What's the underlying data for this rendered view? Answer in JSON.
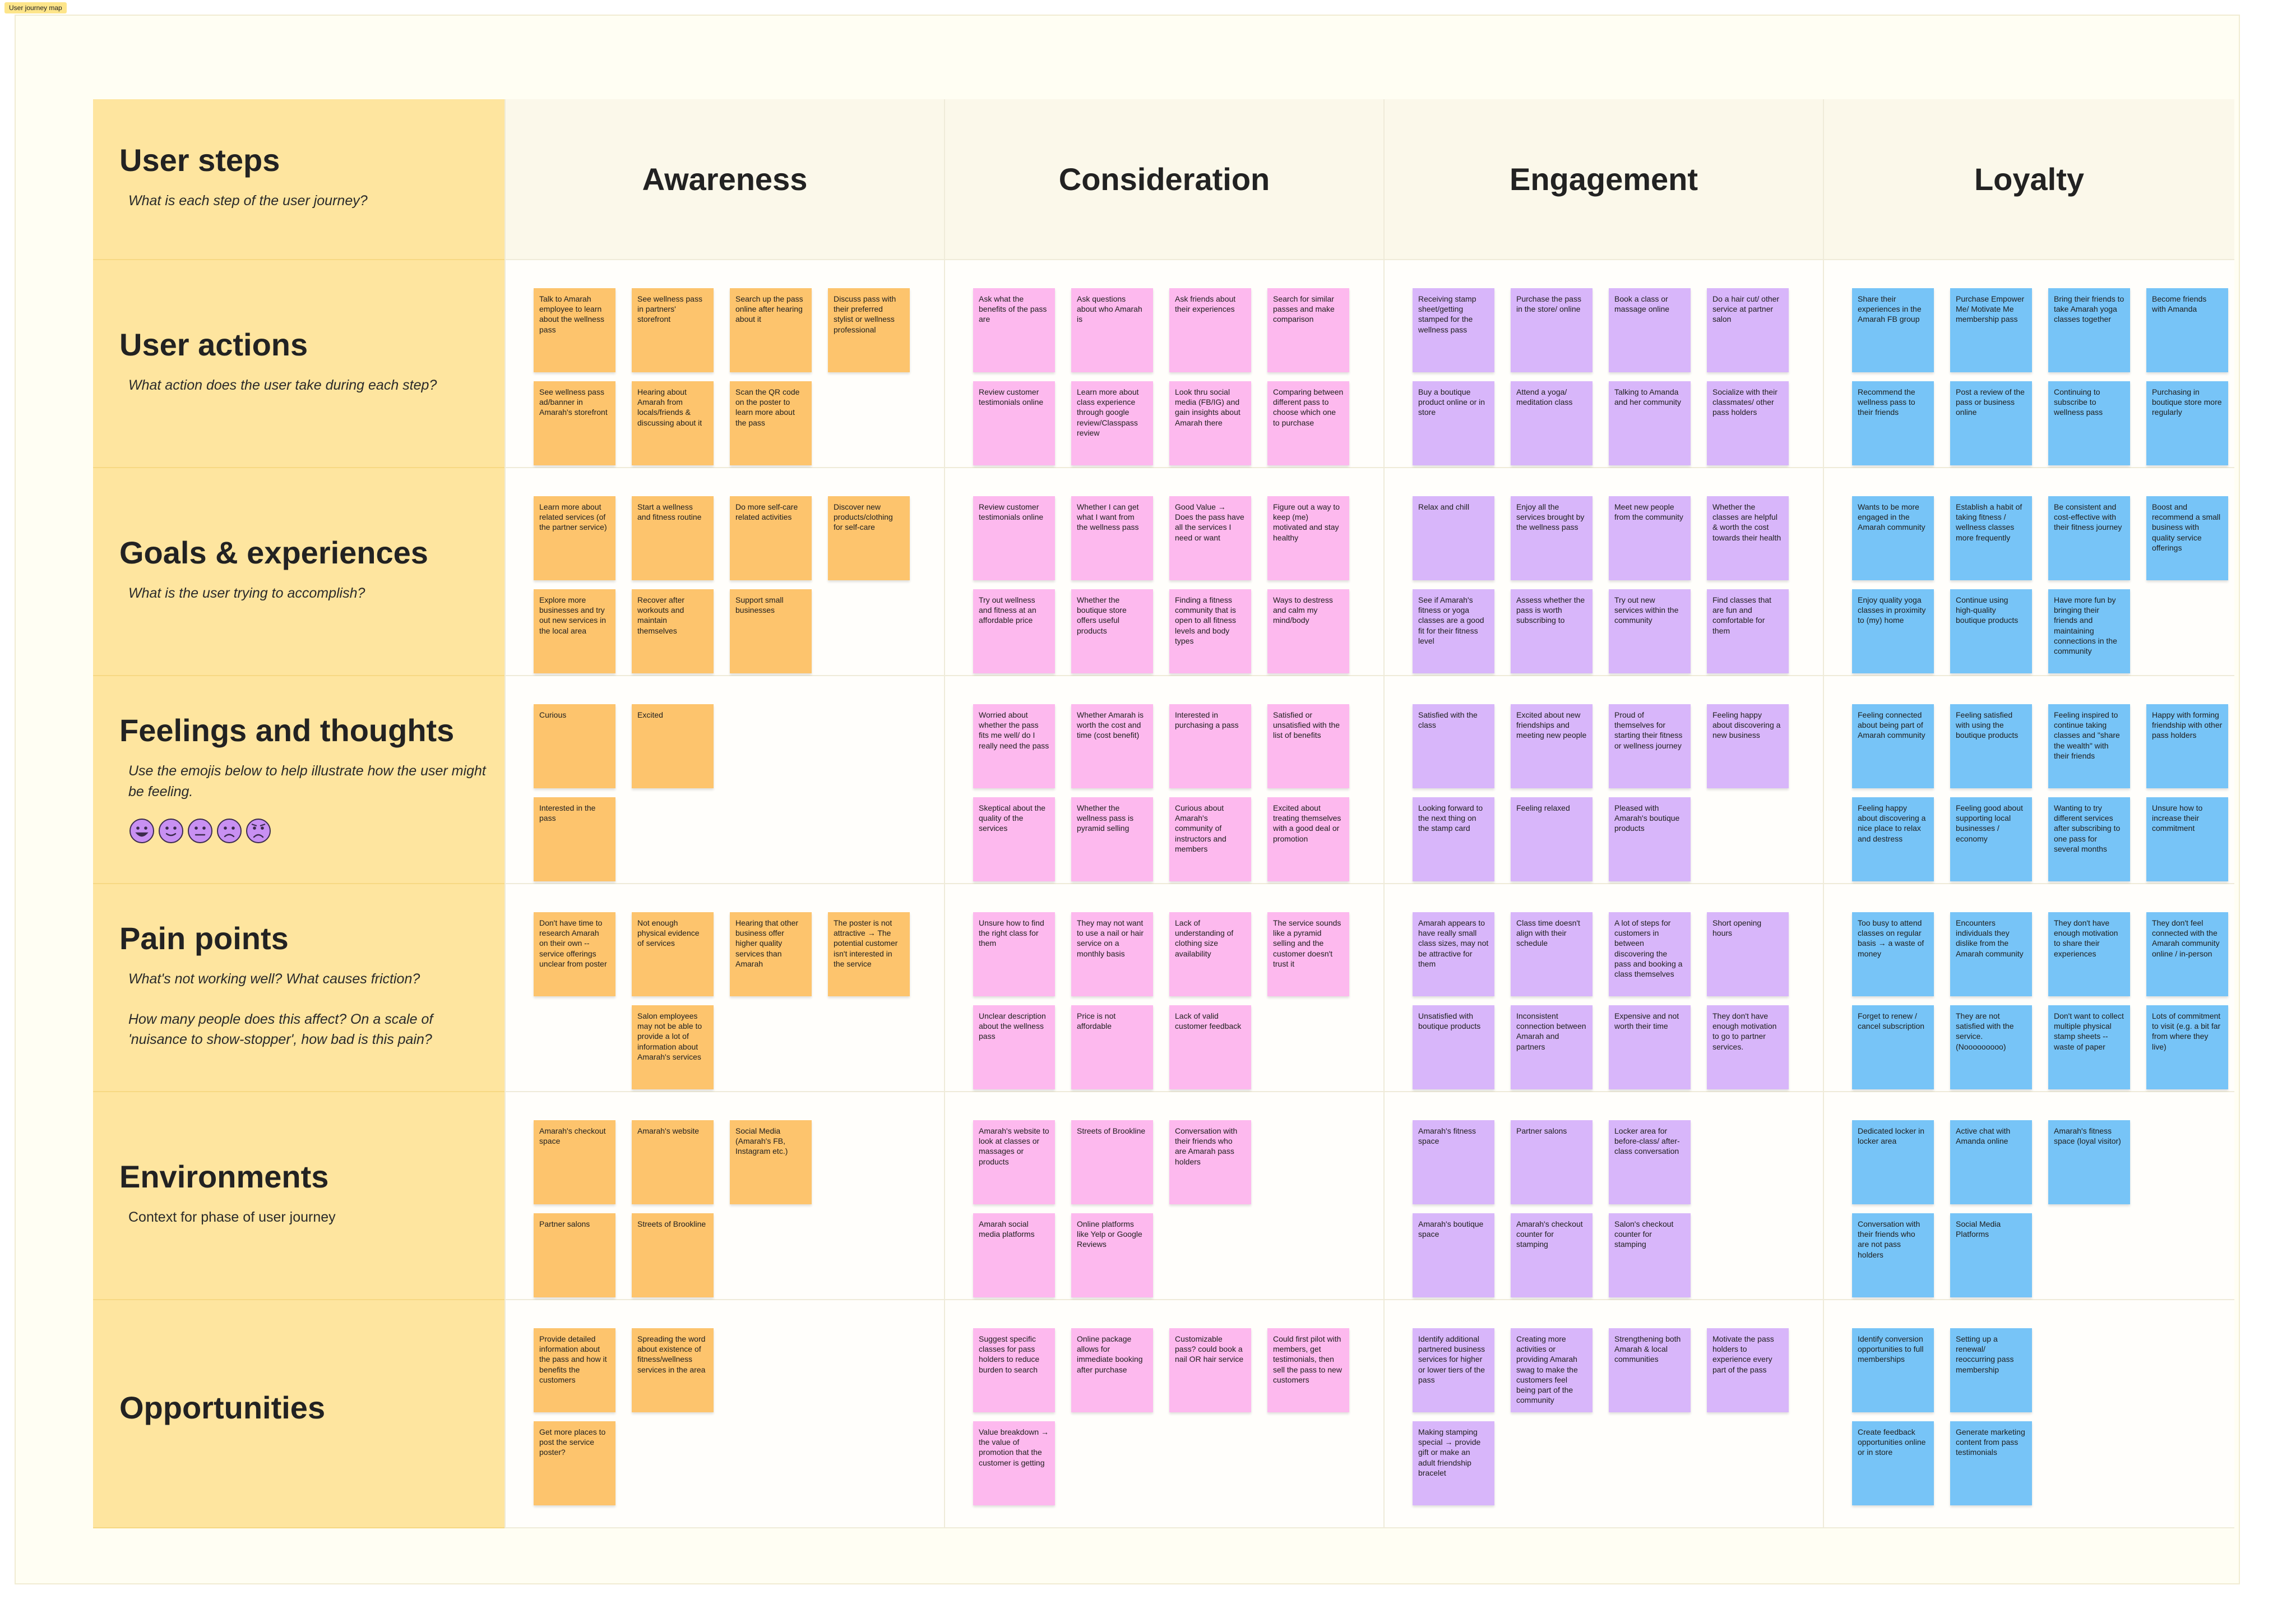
{
  "tag": "User journey map",
  "columns": [
    "Awareness",
    "Consideration",
    "Engagement",
    "Loyalty"
  ],
  "rows": [
    {
      "label": "User steps",
      "subtitle": [
        "What is each step of the user journey?"
      ]
    },
    {
      "label": "User actions",
      "subtitle": [
        "What action does the user take during each step?"
      ],
      "cells": [
        [
          "Talk to Amarah employee to learn about the wellness pass",
          "See wellness pass in partners' storefront",
          "Search up the pass online after hearing about it",
          "Discuss pass with their preferred stylist or wellness professional",
          "See wellness pass ad/banner in Amarah's storefront",
          "Hearing about Amarah from locals/friends & discussing about it",
          "Scan the QR code on the poster to learn more about the pass"
        ],
        [
          "Ask what the benefits of the pass are",
          "Ask questions about who Amarah is",
          "Ask friends about their experiences",
          "Search for similar passes and make comparison",
          "Review customer testimonials online",
          "Learn more about class experience through google review/Classpass review",
          "Look thru social media (FB/IG) and gain insights about Amarah there",
          "Comparing between different pass to choose which one to purchase"
        ],
        [
          "Receiving stamp sheet/getting stamped for the wellness pass",
          "Purchase the pass in the store/ online",
          "Book a class or massage online",
          "Do a hair cut/ other service at partner salon",
          "Buy a boutique product online or in store",
          "Attend a yoga/ meditation class",
          "Talking to Amanda and her community",
          "Socialize with their classmates/ other pass holders"
        ],
        [
          "Share their experiences in the Amarah FB group",
          "Purchase Empower Me/ Motivate Me membership pass",
          "Bring their friends to take Amarah yoga classes together",
          "Become friends with Amanda",
          "Recommend the wellness pass to their friends",
          "Post a review of the pass or business online",
          "Continuing to subscribe to wellness pass",
          "Purchasing in boutique store more regularly"
        ]
      ]
    },
    {
      "label": "Goals & experiences",
      "subtitle": [
        "What is the user trying to accomplish?"
      ],
      "cells": [
        [
          "Learn more about related services (of the partner service)",
          "Start a wellness and fitness routine",
          "Do more self-care related activities",
          "Discover new products/clothing for self-care",
          "Explore more businesses and try out new services in the local area",
          "Recover after workouts and maintain themselves",
          "Support small businesses"
        ],
        [
          "Review customer testimonials online",
          "Whether I can get what I want from the wellness pass",
          "Good Value → Does the pass have all the services I need or want",
          "Figure out a way to keep (me) motivated and stay healthy",
          "Try out wellness and fitness at an affordable price",
          "Whether the boutique store offers useful products",
          "Finding a fitness community that is open to all fitness levels and body types",
          "Ways to destress and calm my mind/body"
        ],
        [
          "Relax and chill",
          "Enjoy all the services brought by the wellness pass",
          "Meet new people from the community",
          "Whether the classes are helpful & worth the cost towards their health",
          "See if Amarah's fitness or yoga classes are a good fit for their fitness level",
          "Assess whether the pass is worth subscribing to",
          "Try out new services within the community",
          "Find classes that are fun and comfortable for them"
        ],
        [
          "Wants to be more engaged in the Amarah community",
          "Establish a habit of taking fitness / wellness classes more frequently",
          "Be consistent and cost-effective with their fitness journey",
          "Boost and recommend a small business with quality service offerings",
          "Enjoy quality yoga classes in proximity to (my) home",
          "Continue using high-quality boutique products",
          "Have more fun by bringing their friends and maintaining connections in the community"
        ]
      ]
    },
    {
      "label": "Feelings and thoughts",
      "subtitle": [
        "Use the emojis below to help illustrate how the user might be feeling."
      ],
      "cells": [
        [
          "Curious",
          "Excited",
          "Interested in the pass"
        ],
        [
          "Worried about whether the pass fits me well/ do I really need the pass",
          "Whether Amarah is worth the cost and time (cost benefit)",
          "Interested in purchasing a pass",
          "Satisfied or unsatisfied with the list of benefits",
          "Skeptical about the quality of the services",
          "Whether the wellness pass is pyramid selling",
          "Curious about Amarah's community of instructors and members",
          "Excited about treating themselves with a good deal or promotion"
        ],
        [
          "Satisfied with the class",
          "Excited about new friendships and meeting new people",
          "Proud of themselves for starting their fitness or wellness journey",
          "Feeling happy about discovering a new business",
          "Looking forward to the next thing on the stamp card",
          "Feeling relaxed",
          "Pleased with Amarah's boutique products"
        ],
        [
          "Feeling connected about being part of Amarah community",
          "Feeling satisfied with using the boutique products",
          "Feeling inspired to continue taking classes and \"share the wealth\" with their friends",
          "Happy with forming friendship with other pass holders",
          "Feeling happy about discovering a nice place to relax and destress",
          "Feeling good about supporting local businesses / economy",
          "Wanting to try different services after subscribing to one pass for several months",
          "Unsure how to increase their commitment"
        ]
      ]
    },
    {
      "label": "Pain points",
      "subtitle": [
        "What's not working well? What causes friction?",
        "How many people does this affect? On a scale of 'nuisance to show-stopper', how bad is this pain?"
      ],
      "cells": [
        [
          "Don't have time to research Amarah on their own -- service offerings unclear from poster",
          "Not enough physical evidence of services",
          "Hearing that other business offer higher quality services than Amarah",
          "The poster is not attractive → The potential customer isn't interested in the service",
          "Salon employees may not be able to provide a lot of information about Amarah's services"
        ],
        [
          "Unsure how to find the right class for them",
          "They may not want to use a nail or hair service on a monthly basis",
          "Lack of understanding of clothing size availability",
          "The service sounds like a pyramid selling and the customer doesn't trust it",
          "Unclear description about the wellness pass",
          "Price is not affordable",
          "Lack of valid customer feedback"
        ],
        [
          "Amarah appears to have really small class sizes, may not be attractive for them",
          "Class time doesn't align with their schedule",
          "A lot of steps for customers in between discovering the pass and booking a class themselves",
          "Short opening hours",
          "Unsatisfied with boutique products",
          "Inconsistent connection between Amarah and partners",
          "Expensive and not worth their time",
          "They don't have enough motivation to go to partner services."
        ],
        [
          "Too busy to attend classes on regular basis → a waste of money",
          "Encounters individuals they dislike from the Amarah community",
          "They don't have enough motivation to share their experiences",
          "They don't feel connected with the Amarah community online / in-person",
          "Forget to renew / cancel subscription",
          "They are not satisfied with the service. (Nooooooooo)",
          "Don't want to collect multiple physical stamp sheets -- waste of paper",
          "Lots of commitment to visit (e.g. a bit far from where they live)"
        ]
      ]
    },
    {
      "label": "Environments",
      "subtitle": [
        "Context for phase of user journey"
      ],
      "cells": [
        [
          "Amarah's checkout space",
          "Amarah's website",
          "Social Media (Amarah's FB, Instagram etc.)",
          "Partner salons",
          "Streets of Brookline"
        ],
        [
          "Amarah's website to look at classes or massages or products",
          "Streets of Brookline",
          "Conversation with their friends who are Amarah pass holders",
          "Amarah social media platforms",
          "Online platforms like Yelp or Google Reviews"
        ],
        [
          "Amarah's fitness space",
          "Partner salons",
          "Locker area for before-class/ after-class conversation",
          "Amarah's boutique space",
          "Amarah's checkout counter for stamping",
          "Salon's checkout counter for stamping"
        ],
        [
          "Dedicated locker in locker area",
          "Active chat with Amanda online",
          "Amarah's fitness space (loyal visitor)",
          "Conversation with their friends who are not pass holders",
          "Social Media Platforms"
        ]
      ]
    },
    {
      "label": "Opportunities",
      "cells": [
        [
          "Provide detailed information about the pass and how it benefits the customers",
          "Spreading the word about existence of fitness/wellness services in the area",
          "Get more places to post the service poster?"
        ],
        [
          "Suggest specific classes for pass holders to reduce burden to search",
          "Online package allows for immediate booking after purchase",
          "Customizable pass? could book a nail OR hair service",
          "Could first pilot with members, get testimonials, then sell the pass to new customers",
          "Value breakdown → the value of promotion that the customer is getting"
        ],
        [
          "Identify additional partnered business services for higher or lower tiers of the pass",
          "Creating more activities or providing Amarah swag to make the customers feel being part of the community",
          "Strengthening both Amarah & local communities",
          "Motivate the pass holders to experience every part of the pass",
          "Making stamping special → provide gift or make an adult friendship bracelet"
        ],
        [
          "Identify conversion opportunities to full memberships",
          "Setting up a renewal/ reoccurring pass membership",
          "Create feedback opportunities online or in store",
          "Generate marketing content from pass testimonials"
        ]
      ]
    }
  ]
}
